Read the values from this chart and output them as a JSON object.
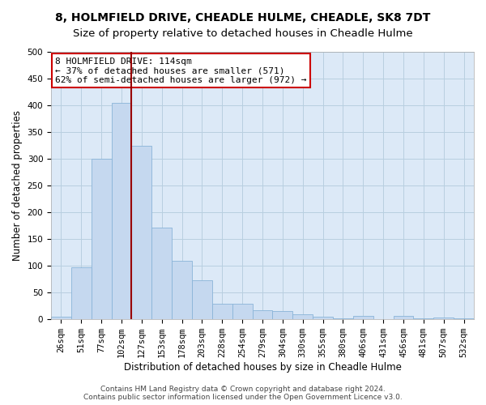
{
  "title": "8, HOLMFIELD DRIVE, CHEADLE HULME, CHEADLE, SK8 7DT",
  "subtitle": "Size of property relative to detached houses in Cheadle Hulme",
  "xlabel": "Distribution of detached houses by size in Cheadle Hulme",
  "ylabel": "Number of detached properties",
  "bar_labels": [
    "26sqm",
    "51sqm",
    "77sqm",
    "102sqm",
    "127sqm",
    "153sqm",
    "178sqm",
    "203sqm",
    "228sqm",
    "254sqm",
    "279sqm",
    "304sqm",
    "330sqm",
    "355sqm",
    "380sqm",
    "406sqm",
    "431sqm",
    "456sqm",
    "481sqm",
    "507sqm",
    "532sqm"
  ],
  "bar_values": [
    5,
    97,
    300,
    405,
    325,
    172,
    110,
    73,
    29,
    29,
    17,
    15,
    10,
    5,
    2,
    6,
    1,
    6,
    2,
    4,
    2
  ],
  "bar_color": "#c5d8ef",
  "bar_edge_color": "#8ab4d8",
  "vline_x_idx": 3.5,
  "vline_color": "#990000",
  "annotation_text": "8 HOLMFIELD DRIVE: 114sqm\n← 37% of detached houses are smaller (571)\n62% of semi-detached houses are larger (972) →",
  "annotation_box_color": "#ffffff",
  "annotation_box_edge": "#cc0000",
  "ylim": [
    0,
    500
  ],
  "yticks": [
    0,
    50,
    100,
    150,
    200,
    250,
    300,
    350,
    400,
    450,
    500
  ],
  "ax_facecolor": "#dce9f7",
  "background_color": "#ffffff",
  "grid_color": "#b8cfe0",
  "footer": "Contains HM Land Registry data © Crown copyright and database right 2024.\nContains public sector information licensed under the Open Government Licence v3.0.",
  "title_fontsize": 10,
  "xlabel_fontsize": 8.5,
  "ylabel_fontsize": 8.5,
  "tick_fontsize": 7.5,
  "annot_fontsize": 8,
  "footer_fontsize": 6.5
}
